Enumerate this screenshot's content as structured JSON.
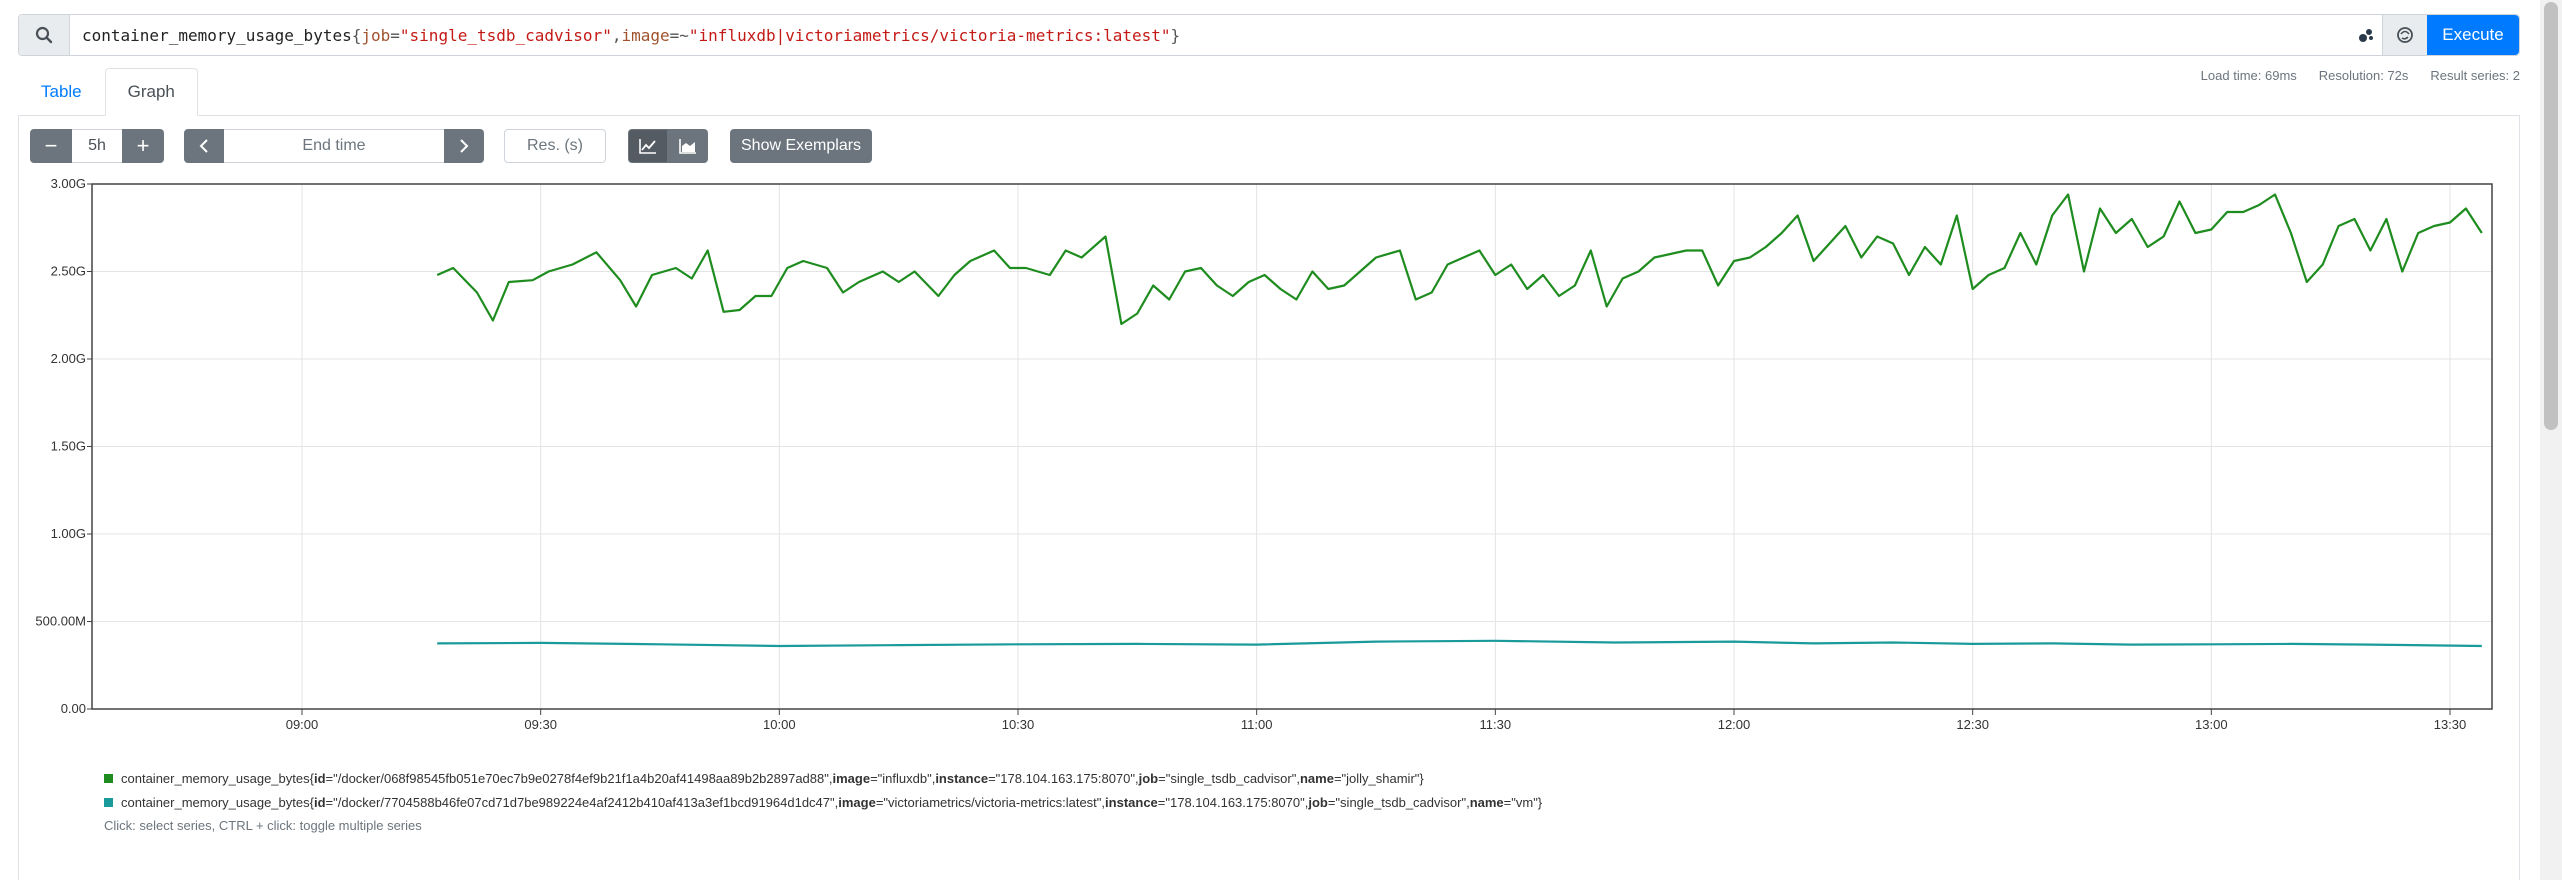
{
  "query": {
    "metric": "container_memory_usage_bytes",
    "label1_name": "job",
    "label1_op": "=",
    "label1_value": "\"single_tsdb_cadvisor\"",
    "label2_name": "image",
    "label2_op": "=~",
    "label2_value": "\"influxdb|victoriametrics/victoria-metrics:latest\"",
    "execute_label": "Execute"
  },
  "tabs": [
    {
      "label": "Table"
    },
    {
      "label": "Graph"
    }
  ],
  "stats": {
    "load_time": "Load time: 69ms",
    "resolution": "Resolution: 72s",
    "result_series": "Result series: 2"
  },
  "controls": {
    "minus": "−",
    "range": "5h",
    "plus": "+",
    "end_time_placeholder": "End time",
    "resolution_placeholder": "Res. (s)",
    "exemplars_label": "Show Exemplars"
  },
  "chart_data": {
    "type": "line",
    "x_ticks": [
      "09:00",
      "09:30",
      "10:00",
      "10:30",
      "11:00",
      "11:30",
      "12:00",
      "12:30",
      "13:00",
      "13:30"
    ],
    "y_ticks": [
      "0.00",
      "500.00M",
      "1.00G",
      "1.50G",
      "2.00G",
      "2.50G",
      "3.00G"
    ],
    "ylim": [
      0,
      3.0
    ],
    "grid": true,
    "series": [
      {
        "name": "influxdb",
        "color": "#1e8c1e",
        "points": [
          [
            "09:17",
            2.48
          ],
          [
            "09:19",
            2.52
          ],
          [
            "09:22",
            2.38
          ],
          [
            "09:24",
            2.22
          ],
          [
            "09:26",
            2.44
          ],
          [
            "09:29",
            2.45
          ],
          [
            "09:31",
            2.5
          ],
          [
            "09:34",
            2.54
          ],
          [
            "09:37",
            2.61
          ],
          [
            "09:40",
            2.45
          ],
          [
            "09:42",
            2.3
          ],
          [
            "09:44",
            2.48
          ],
          [
            "09:47",
            2.52
          ],
          [
            "09:49",
            2.46
          ],
          [
            "09:51",
            2.62
          ],
          [
            "09:53",
            2.27
          ],
          [
            "09:55",
            2.28
          ],
          [
            "09:57",
            2.36
          ],
          [
            "09:59",
            2.36
          ],
          [
            "10:01",
            2.52
          ],
          [
            "10:03",
            2.56
          ],
          [
            "10:06",
            2.52
          ],
          [
            "10:08",
            2.38
          ],
          [
            "10:10",
            2.44
          ],
          [
            "10:13",
            2.5
          ],
          [
            "10:15",
            2.44
          ],
          [
            "10:17",
            2.5
          ],
          [
            "10:20",
            2.36
          ],
          [
            "10:22",
            2.48
          ],
          [
            "10:24",
            2.56
          ],
          [
            "10:27",
            2.62
          ],
          [
            "10:29",
            2.52
          ],
          [
            "10:31",
            2.52
          ],
          [
            "10:34",
            2.48
          ],
          [
            "10:36",
            2.62
          ],
          [
            "10:38",
            2.58
          ],
          [
            "10:41",
            2.7
          ],
          [
            "10:43",
            2.2
          ],
          [
            "10:45",
            2.26
          ],
          [
            "10:47",
            2.42
          ],
          [
            "10:49",
            2.34
          ],
          [
            "10:51",
            2.5
          ],
          [
            "10:53",
            2.52
          ],
          [
            "10:55",
            2.42
          ],
          [
            "10:57",
            2.36
          ],
          [
            "10:59",
            2.44
          ],
          [
            "11:01",
            2.48
          ],
          [
            "11:03",
            2.4
          ],
          [
            "11:05",
            2.34
          ],
          [
            "11:07",
            2.5
          ],
          [
            "11:09",
            2.4
          ],
          [
            "11:11",
            2.42
          ],
          [
            "11:13",
            2.5
          ],
          [
            "11:15",
            2.58
          ],
          [
            "11:18",
            2.62
          ],
          [
            "11:20",
            2.34
          ],
          [
            "11:22",
            2.38
          ],
          [
            "11:24",
            2.54
          ],
          [
            "11:26",
            2.58
          ],
          [
            "11:28",
            2.62
          ],
          [
            "11:30",
            2.48
          ],
          [
            "11:32",
            2.54
          ],
          [
            "11:34",
            2.4
          ],
          [
            "11:36",
            2.48
          ],
          [
            "11:38",
            2.36
          ],
          [
            "11:40",
            2.42
          ],
          [
            "11:42",
            2.62
          ],
          [
            "11:44",
            2.3
          ],
          [
            "11:46",
            2.46
          ],
          [
            "11:48",
            2.5
          ],
          [
            "11:50",
            2.58
          ],
          [
            "11:52",
            2.6
          ],
          [
            "11:54",
            2.62
          ],
          [
            "11:56",
            2.62
          ],
          [
            "11:58",
            2.42
          ],
          [
            "12:00",
            2.56
          ],
          [
            "12:02",
            2.58
          ],
          [
            "12:04",
            2.64
          ],
          [
            "12:06",
            2.72
          ],
          [
            "12:08",
            2.82
          ],
          [
            "12:10",
            2.56
          ],
          [
            "12:12",
            2.66
          ],
          [
            "12:14",
            2.76
          ],
          [
            "12:16",
            2.58
          ],
          [
            "12:18",
            2.7
          ],
          [
            "12:20",
            2.66
          ],
          [
            "12:22",
            2.48
          ],
          [
            "12:24",
            2.64
          ],
          [
            "12:26",
            2.54
          ],
          [
            "12:28",
            2.82
          ],
          [
            "12:30",
            2.4
          ],
          [
            "12:32",
            2.48
          ],
          [
            "12:34",
            2.52
          ],
          [
            "12:36",
            2.72
          ],
          [
            "12:38",
            2.54
          ],
          [
            "12:40",
            2.82
          ],
          [
            "12:42",
            2.94
          ],
          [
            "12:44",
            2.5
          ],
          [
            "12:46",
            2.86
          ],
          [
            "12:48",
            2.72
          ],
          [
            "12:50",
            2.8
          ],
          [
            "12:52",
            2.64
          ],
          [
            "12:54",
            2.7
          ],
          [
            "12:56",
            2.9
          ],
          [
            "12:58",
            2.72
          ],
          [
            "13:00",
            2.74
          ],
          [
            "13:02",
            2.84
          ],
          [
            "13:04",
            2.84
          ],
          [
            "13:06",
            2.88
          ],
          [
            "13:08",
            2.94
          ],
          [
            "13:10",
            2.72
          ],
          [
            "13:12",
            2.44
          ],
          [
            "13:14",
            2.54
          ],
          [
            "13:16",
            2.76
          ],
          [
            "13:18",
            2.8
          ],
          [
            "13:20",
            2.62
          ],
          [
            "13:22",
            2.8
          ],
          [
            "13:24",
            2.5
          ],
          [
            "13:26",
            2.72
          ],
          [
            "13:28",
            2.76
          ],
          [
            "13:30",
            2.78
          ],
          [
            "13:32",
            2.86
          ],
          [
            "13:34",
            2.72
          ]
        ]
      },
      {
        "name": "vm",
        "color": "#1a9a9a",
        "points": [
          [
            "09:17",
            0.375
          ],
          [
            "09:30",
            0.378
          ],
          [
            "09:45",
            0.37
          ],
          [
            "10:00",
            0.36
          ],
          [
            "10:15",
            0.365
          ],
          [
            "10:30",
            0.37
          ],
          [
            "10:45",
            0.372
          ],
          [
            "11:00",
            0.368
          ],
          [
            "11:15",
            0.385
          ],
          [
            "11:30",
            0.39
          ],
          [
            "11:45",
            0.38
          ],
          [
            "12:00",
            0.385
          ],
          [
            "12:10",
            0.375
          ],
          [
            "12:20",
            0.38
          ],
          [
            "12:30",
            0.372
          ],
          [
            "12:40",
            0.375
          ],
          [
            "12:50",
            0.368
          ],
          [
            "13:00",
            0.37
          ],
          [
            "13:10",
            0.372
          ],
          [
            "13:20",
            0.368
          ],
          [
            "13:34",
            0.36
          ]
        ]
      }
    ]
  },
  "legend": {
    "items": [
      {
        "color": "#1e8c1e",
        "prefix": "container_memory_usage_bytes{",
        "k1": "id",
        "v1": "=\"/docker/068f98545fb051e70ec7b9e0278f4ef9b21f1a4b20af41498aa89b2b2897ad88\", ",
        "k2": "image",
        "v2": "=\"influxdb\", ",
        "k3": "instance",
        "v3": "=\"178.104.163.175:8070\", ",
        "k4": "job",
        "v4": "=\"single_tsdb_cadvisor\", ",
        "k5": "name",
        "v5": "=\"jolly_shamir\"}"
      },
      {
        "color": "#1a9a9a",
        "prefix": "container_memory_usage_bytes{",
        "k1": "id",
        "v1": "=\"/docker/7704588b46fe07cd71d7be989224e4af2412b410af413a3ef1bcd91964d1dc47\", ",
        "k2": "image",
        "v2": "=\"victoriametrics/victoria-metrics:latest\", ",
        "k3": "instance",
        "v3": "=\"178.104.163.175:8070\", ",
        "k4": "job",
        "v4": "=\"single_tsdb_cadvisor\", ",
        "k5": "name",
        "v5": "=\"vm\"}"
      }
    ],
    "hint": "Click: select series, CTRL + click: toggle multiple series"
  }
}
